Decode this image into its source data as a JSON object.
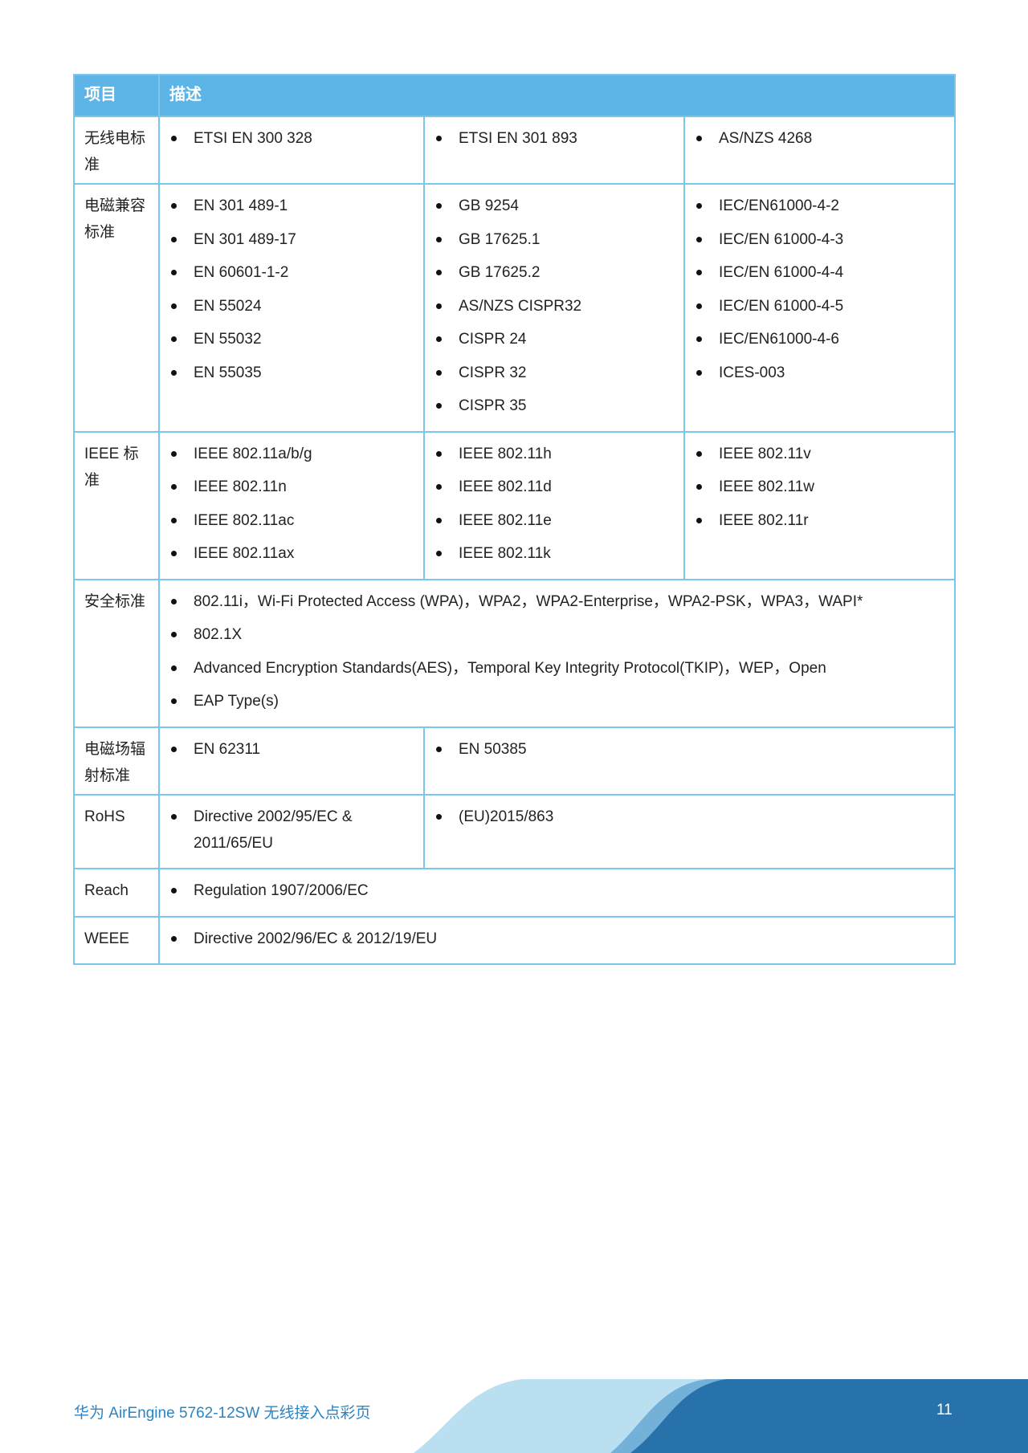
{
  "table": {
    "headers": [
      "项目",
      "描述"
    ],
    "rows": [
      {
        "item": "无线电标准",
        "cols": [
          [
            "ETSI EN 300 328"
          ],
          [
            "ETSI EN 301 893"
          ],
          [
            "AS/NZS 4268"
          ]
        ]
      },
      {
        "item": "电磁兼容标准",
        "cols": [
          [
            "EN 301 489-1",
            "EN 301 489-17",
            "EN 60601-1-2",
            "EN 55024",
            "EN 55032",
            "EN 55035"
          ],
          [
            "GB 9254",
            "GB 17625.1",
            "GB 17625.2",
            "AS/NZS CISPR32",
            "CISPR 24",
            "CISPR 32",
            "CISPR 35"
          ],
          [
            "IEC/EN61000-4-2",
            "IEC/EN 61000-4-3",
            "IEC/EN 61000-4-4",
            "IEC/EN 61000-4-5",
            "IEC/EN61000-4-6",
            "ICES-003"
          ]
        ]
      },
      {
        "item": "IEEE 标准",
        "cols": [
          [
            "IEEE 802.11a/b/g",
            "IEEE 802.11n",
            "IEEE 802.11ac",
            "IEEE 802.11ax"
          ],
          [
            "IEEE 802.11h",
            "IEEE 802.11d",
            "IEEE 802.11e",
            "IEEE 802.11k"
          ],
          [
            "IEEE 802.11v",
            "IEEE 802.11w",
            "IEEE 802.11r"
          ]
        ]
      },
      {
        "item": "安全标准",
        "cols": [
          [
            "802.11i，Wi-Fi Protected Access (WPA)，WPA2，WPA2-Enterprise，WPA2-PSK，WPA3，WAPI*",
            "802.1X",
            "Advanced Encryption Standards(AES)，Temporal Key Integrity Protocol(TKIP)，WEP，Open",
            "EAP Type(s)"
          ]
        ]
      },
      {
        "item": "电磁场辐射标准",
        "cols": [
          [
            "EN 62311"
          ],
          [
            "EN 50385"
          ]
        ]
      },
      {
        "item": "RoHS",
        "cols": [
          [
            "Directive 2002/95/EC & 2011/65/EU"
          ],
          [
            "(EU)2015/863"
          ]
        ]
      },
      {
        "item": "Reach",
        "cols": [
          [
            "Regulation 1907/2006/EC"
          ]
        ]
      },
      {
        "item": "WEEE",
        "cols": [
          [
            "Directive 2002/96/EC & 2012/19/EU"
          ]
        ]
      }
    ]
  },
  "footer": {
    "title": "华为 AirEngine 5762-12SW 无线接入点彩页",
    "page": "11"
  },
  "colors": {
    "header_bg": "#5db4e6",
    "border": "#7cc6ec",
    "footer_text": "#2b84c4",
    "band_dark": "#2872ac",
    "band_mid": "#74b1d8",
    "band_light": "#badff0"
  }
}
